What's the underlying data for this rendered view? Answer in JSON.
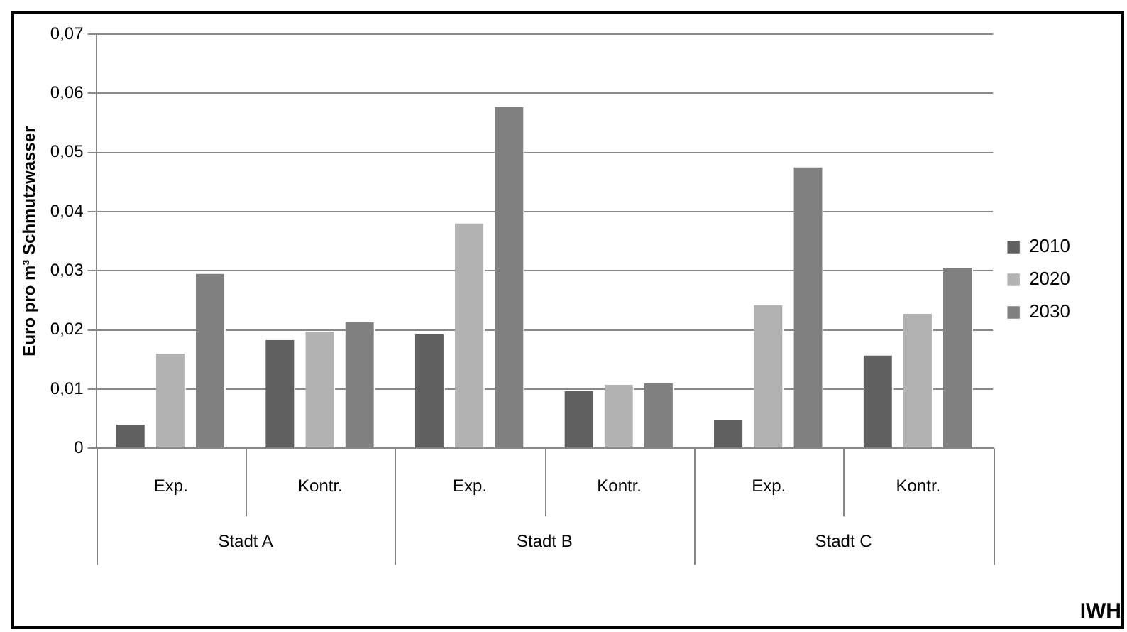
{
  "chart_data": {
    "type": "bar",
    "ylabel": "Euro pro m³ Schmutzwasser",
    "categories": [
      "Exp.",
      "Kontr.",
      "Exp.",
      "Kontr.",
      "Exp.",
      "Kontr."
    ],
    "series": [
      {
        "name": "2010",
        "color": "#606060",
        "values": [
          0.004,
          0.0183,
          0.0193,
          0.0097,
          0.0047,
          0.0157
        ]
      },
      {
        "name": "2020",
        "color": "#b2b2b2",
        "values": [
          0.016,
          0.0197,
          0.038,
          0.0107,
          0.0242,
          0.0227
        ]
      },
      {
        "name": "2030",
        "color": "#808080",
        "values": [
          0.0295,
          0.0213,
          0.0577,
          0.011,
          0.0475,
          0.0305
        ]
      }
    ],
    "ylim": [
      0,
      0.07
    ],
    "yticks": [
      0,
      {
        "value": 0.01,
        "label": "0,01"
      },
      {
        "value": 0.02,
        "label": "0,02"
      },
      {
        "value": 0.03,
        "label": "0,03"
      },
      {
        "value": 0.04,
        "label": "0,04"
      },
      {
        "value": 0.05,
        "label": "0,05"
      },
      {
        "value": 0.06,
        "label": "0,06"
      },
      {
        "value": 0.07,
        "label": "0,07"
      }
    ],
    "grid": "y",
    "legend": "right",
    "annotations": [
      "Stadt A",
      "Stadt B",
      "Stadt C",
      "IWH"
    ]
  }
}
